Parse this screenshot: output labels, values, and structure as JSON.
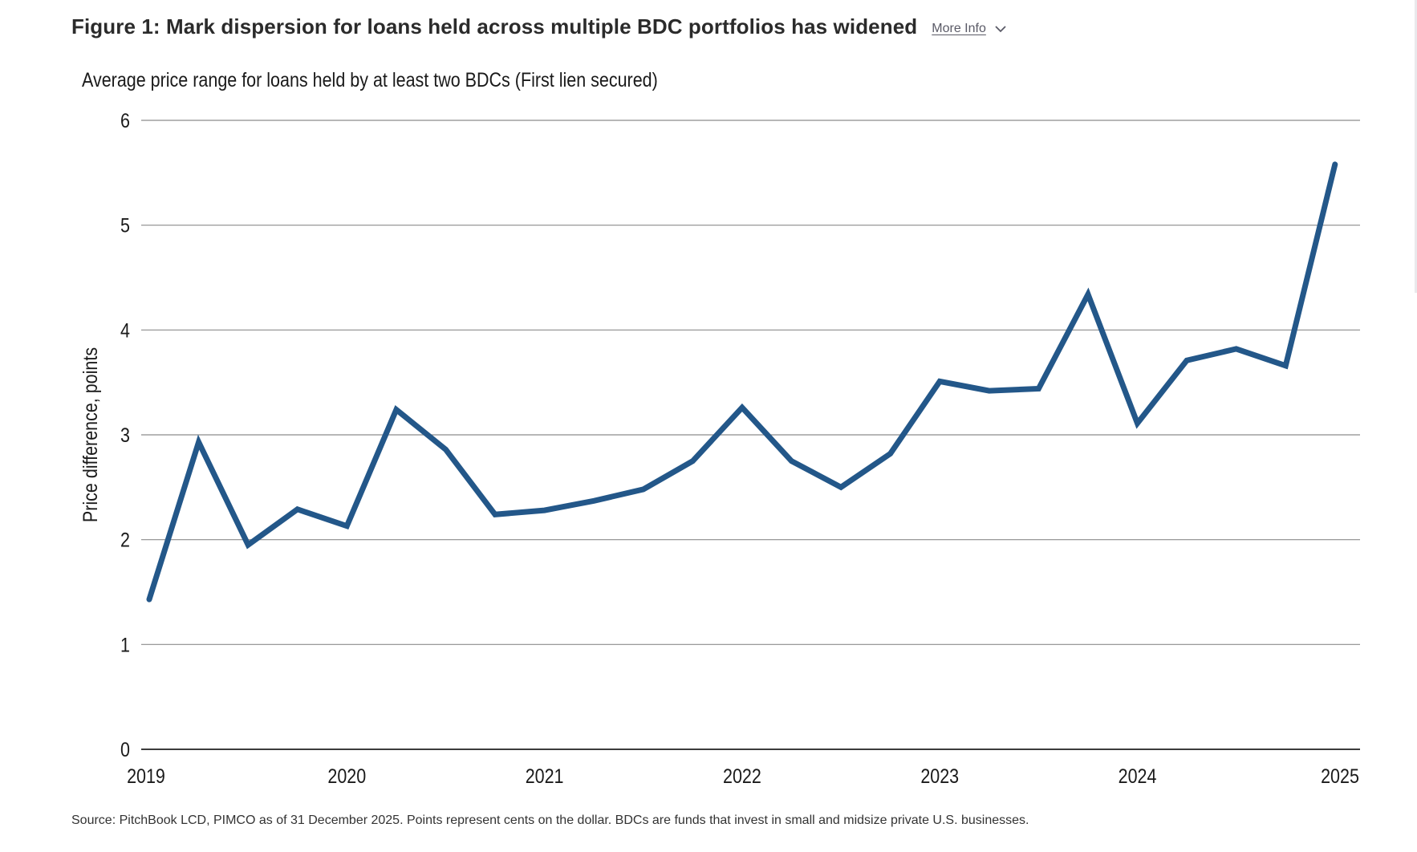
{
  "header": {
    "title": "Figure 1: Mark dispersion for loans held across multiple BDC portfolios has widened",
    "more_info_label": "More Info",
    "more_info_icon": "chevron-down-icon"
  },
  "footer": {
    "source": "Source: PitchBook LCD, PIMCO as of 31 December 2025. Points represent cents on the dollar. BDCs are funds that invest in small and midsize private U.S. businesses."
  },
  "chart_data": {
    "type": "line",
    "title": "Average price range for loans held by at least two BDCs (First lien secured)",
    "xlabel": "",
    "ylabel": "Price difference, points",
    "ylim": [
      0,
      6
    ],
    "xlim": [
      2019,
      2025.1
    ],
    "y_ticks": [
      "0",
      "1",
      "2",
      "3",
      "4",
      "5",
      "6"
    ],
    "x_ticks": [
      "2019",
      "2020",
      "2021",
      "2022",
      "2023",
      "2024",
      "2025"
    ],
    "grid": true,
    "line_color": "#235789",
    "grid_color": "#8c8c8c",
    "x": [
      2019.0,
      2019.25,
      2019.5,
      2019.75,
      2020.0,
      2020.25,
      2020.5,
      2020.75,
      2021.0,
      2021.25,
      2021.5,
      2021.75,
      2022.0,
      2022.25,
      2022.5,
      2022.75,
      2023.0,
      2023.25,
      2023.5,
      2023.75,
      2024.0,
      2024.25,
      2024.5,
      2024.75,
      2025.0
    ],
    "series": [
      {
        "values": [
          1.43,
          2.93,
          1.95,
          2.29,
          2.13,
          3.24,
          2.86,
          2.24,
          2.28,
          2.37,
          2.48,
          2.75,
          3.26,
          2.75,
          2.5,
          2.82,
          3.51,
          3.42,
          3.44,
          4.34,
          3.11,
          3.71,
          3.82,
          3.66,
          5.58
        ]
      }
    ]
  }
}
